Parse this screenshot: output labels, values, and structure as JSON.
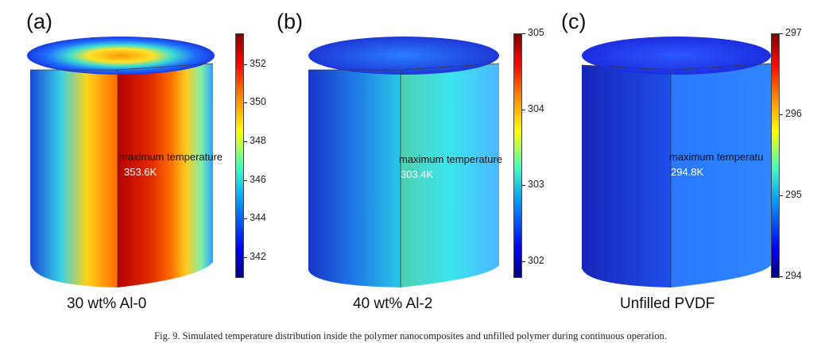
{
  "panels": [
    {
      "label": "(a)",
      "subtitle": "30 wt% Al-0",
      "annotation_label": "maximum temperature",
      "annotation_value": "353.6K",
      "colorbar_ticks": [
        "352",
        "350",
        "348",
        "346",
        "344",
        "342"
      ],
      "colorbar_range": [
        341,
        353.6
      ]
    },
    {
      "label": "(b)",
      "subtitle": "40 wt% Al-2",
      "annotation_label": "maximum temperature",
      "annotation_value": "303.4K",
      "colorbar_ticks": [
        "305",
        "304",
        "303",
        "302"
      ],
      "colorbar_range": [
        301.8,
        305
      ]
    },
    {
      "label": "(c)",
      "subtitle": "Unfilled PVDF",
      "annotation_label": "maximum temperatu",
      "annotation_value": "294.8K",
      "colorbar_ticks": [
        "297",
        "296",
        "295",
        "294"
      ],
      "colorbar_range": [
        294,
        297
      ]
    }
  ],
  "caption": "Fig. 9. Simulated temperature distribution inside the polymer nanocomposites and unfilled polymer during continuous operation.",
  "colors": {
    "jet_low": "#00007f",
    "jet_high": "#7f0000"
  }
}
